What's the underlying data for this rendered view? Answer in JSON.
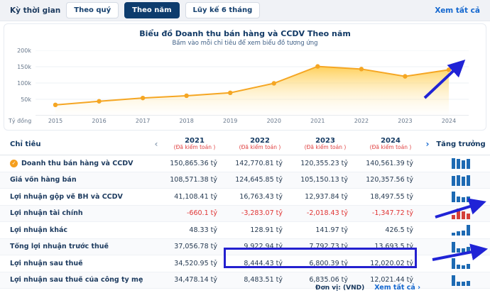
{
  "icons": {
    "chevron_left": "‹",
    "chevron_right": "›",
    "check": "✓"
  },
  "colors": {
    "accent_navy": "#0d3c6d",
    "link_blue": "#1568cf",
    "negative_red": "#e03434",
    "line_orange": "#f5a623",
    "area_yellow": "#ffd54f",
    "growth_bar_blue": "#1d6ab3",
    "growth_bar_red": "#d4403a",
    "annotation_blue": "#2420cf"
  },
  "topbar": {
    "label": "Kỳ thời gian",
    "tabs": [
      {
        "label": "Theo quý",
        "active": false
      },
      {
        "label": "Theo năm",
        "active": true
      },
      {
        "label": "Lũy kế 6 tháng",
        "active": false
      }
    ],
    "view_all": "Xem tất cả"
  },
  "chart": {
    "title": "Biểu đồ Doanh thu bán hàng và CCDV Theo năm",
    "subtitle": "Bấm vào mỗi chỉ tiêu để xem biểu đồ tương ứng",
    "unit_label": "Tỷ đồng",
    "y_ticks": [
      "200k",
      "150k",
      "100k",
      "50k"
    ]
  },
  "chart_data": {
    "type": "area",
    "title": "Biểu đồ Doanh thu bán hàng và CCDV Theo năm",
    "x": [
      2015,
      2016,
      2017,
      2018,
      2019,
      2020,
      2021,
      2022,
      2023,
      2024
    ],
    "values": [
      33000,
      44000,
      54000,
      61000,
      70000,
      99000,
      150865.36,
      142770.81,
      120355.23,
      140561.39
    ],
    "ylabel": "Tỷ đồng",
    "ylim": [
      0,
      200000
    ],
    "grid": true,
    "legend": false
  },
  "table": {
    "col_header": "Chỉ tiêu",
    "years": [
      "2021",
      "2022",
      "2023",
      "2024"
    ],
    "audit_note": "(Đã kiểm toán )",
    "growth_header": "Tăng trưởng",
    "rows": [
      {
        "label": "Doanh thu bán hàng và CCDV",
        "selected": true,
        "values": [
          "150,865.36 tỷ",
          "142,770.81 tỷ",
          "120,355.23 tỷ",
          "140,561.39 tỷ"
        ],
        "nums": [
          150865.36,
          142770.81,
          120355.23,
          140561.39
        ]
      },
      {
        "label": "Giá vốn hàng bán",
        "selected": false,
        "values": [
          "108,571.38 tỷ",
          "124,645.85 tỷ",
          "105,150.13 tỷ",
          "120,357.56 tỷ"
        ],
        "nums": [
          108571.38,
          124645.85,
          105150.13,
          120357.56
        ]
      },
      {
        "label": "Lợi nhuận gộp về BH và CCDV",
        "selected": false,
        "values": [
          "41,108.41 tỷ",
          "16,763.43 tỷ",
          "12,937.84 tỷ",
          "18,497.55 tỷ"
        ],
        "nums": [
          41108.41,
          16763.43,
          12937.84,
          18497.55
        ]
      },
      {
        "label": "Lợi nhuận tài chính",
        "selected": false,
        "values": [
          "-660.1 tỷ",
          "-3,283.07 tỷ",
          "-2,018.43 tỷ",
          "-1,347.72 tỷ"
        ],
        "nums": [
          -660.1,
          -3283.07,
          -2018.43,
          -1347.72
        ]
      },
      {
        "label": "Lợi nhuận khác",
        "selected": false,
        "values": [
          "48.33 tỷ",
          "128.91 tỷ",
          "141.97 tỷ",
          "426.5 tỷ"
        ],
        "nums": [
          48.33,
          128.91,
          141.97,
          426.5
        ]
      },
      {
        "label": "Tổng lợi nhuận trước thuế",
        "selected": false,
        "values": [
          "37,056.78 tỷ",
          "9,922.94 tỷ",
          "7,792.73 tỷ",
          "13,693.5 tỷ"
        ],
        "nums": [
          37056.78,
          9922.94,
          7792.73,
          13693.5
        ]
      },
      {
        "label": "Lợi nhuận sau thuế",
        "selected": false,
        "values": [
          "34,520.95 tỷ",
          "8,444.43 tỷ",
          "6,800.39 tỷ",
          "12,020.02 tỷ"
        ],
        "nums": [
          34520.95,
          8444.43,
          6800.39,
          12020.02
        ]
      },
      {
        "label": "Lợi nhuận sau thuế của công ty mẹ",
        "selected": false,
        "values": [
          "34,478.14 tỷ",
          "8,483.51 tỷ",
          "6,835.06 tỷ",
          "12,021.44 tỷ"
        ],
        "nums": [
          34478.14,
          8483.51,
          6835.06,
          12021.44
        ]
      }
    ]
  },
  "footer": {
    "unit": "Đơn vị: (VND)",
    "view_all": "Xem tất cả"
  }
}
